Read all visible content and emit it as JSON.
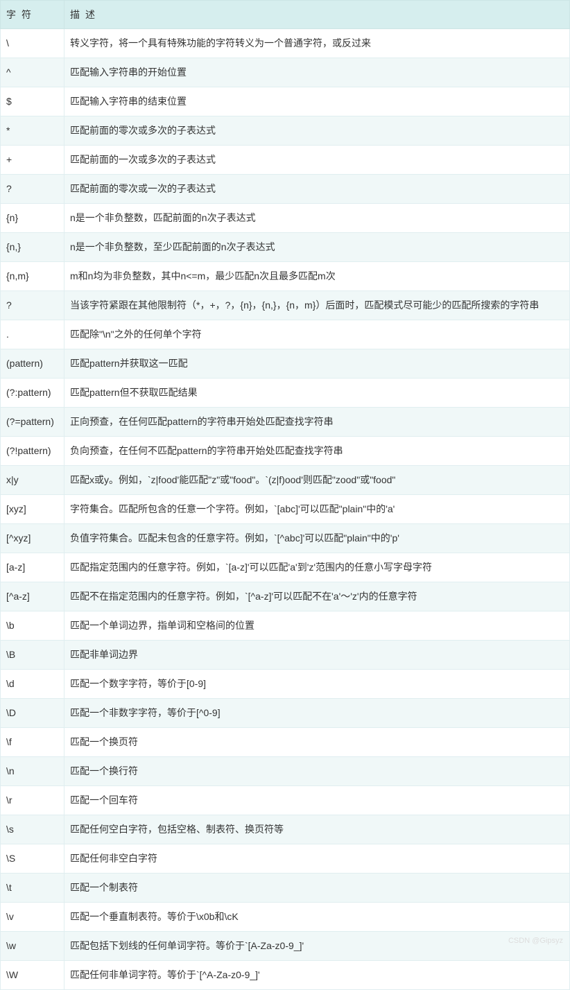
{
  "table": {
    "header_bg": "#d6eeee",
    "row_alt_bg": "#f0f8f8",
    "border_color": "#e0eef0",
    "text_color": "#333333",
    "font_size": 14,
    "columns": [
      {
        "label": "字符",
        "width": 92
      },
      {
        "label": "描述",
        "width": "auto"
      }
    ],
    "rows": [
      {
        "char": "\\",
        "desc": "转义字符，将一个具有特殊功能的字符转义为一个普通字符，或反过来"
      },
      {
        "char": "^",
        "desc": "匹配输入字符串的开始位置"
      },
      {
        "char": "$",
        "desc": "匹配输入字符串的结束位置"
      },
      {
        "char": "*",
        "desc": "匹配前面的零次或多次的子表达式"
      },
      {
        "char": "+",
        "desc": "匹配前面的一次或多次的子表达式"
      },
      {
        "char": "?",
        "desc": "匹配前面的零次或一次的子表达式"
      },
      {
        "char": "{n}",
        "desc": "n是一个非负整数，匹配前面的n次子表达式"
      },
      {
        "char": "{n,}",
        "desc": "n是一个非负整数，至少匹配前面的n次子表达式"
      },
      {
        "char": "{n,m}",
        "desc": "m和n均为非负整数，其中n<=m，最少匹配n次且最多匹配m次"
      },
      {
        "char": "?",
        "desc": "当该字符紧跟在其他限制符（*，+，?，{n}，{n,}，{n，m}）后面时，匹配模式尽可能少的匹配所搜索的字符串"
      },
      {
        "char": ".",
        "desc": "匹配除\"\\n\"之外的任何单个字符"
      },
      {
        "char": "(pattern)",
        "desc": "匹配pattern并获取这一匹配"
      },
      {
        "char": "(?:pattern)",
        "desc": "匹配pattern但不获取匹配结果"
      },
      {
        "char": "(?=pattern)",
        "desc": "正向预查，在任何匹配pattern的字符串开始处匹配查找字符串"
      },
      {
        "char": "(?!pattern)",
        "desc": "负向预查，在任何不匹配pattern的字符串开始处匹配查找字符串"
      },
      {
        "char": "x|y",
        "desc": "匹配x或y。例如，`z|food'能匹配\"z\"或\"food\"。`(z|f)ood'则匹配\"zood\"或\"food\""
      },
      {
        "char": "[xyz]",
        "desc": "字符集合。匹配所包含的任意一个字符。例如，`[abc]'可以匹配\"plain\"中的'a'"
      },
      {
        "char": "[^xyz]",
        "desc": "负值字符集合。匹配未包含的任意字符。例如，`[^abc]'可以匹配\"plain\"中的'p'"
      },
      {
        "char": "[a-z]",
        "desc": "匹配指定范围内的任意字符。例如，`[a-z]'可以匹配'a'到'z'范围内的任意小写字母字符"
      },
      {
        "char": "[^a-z]",
        "desc": "匹配不在指定范围内的任意字符。例如，`[^a-z]'可以匹配不在'a'～'z'内的任意字符"
      },
      {
        "char": "\\b",
        "desc": "匹配一个单词边界，指单词和空格间的位置"
      },
      {
        "char": "\\B",
        "desc": "匹配非单词边界"
      },
      {
        "char": "\\d",
        "desc": "匹配一个数字字符，等价于[0-9]"
      },
      {
        "char": "\\D",
        "desc": "匹配一个非数字字符，等价于[^0-9]"
      },
      {
        "char": "\\f",
        "desc": "匹配一个换页符"
      },
      {
        "char": "\\n",
        "desc": "匹配一个换行符"
      },
      {
        "char": "\\r",
        "desc": "匹配一个回车符"
      },
      {
        "char": "\\s",
        "desc": "匹配任何空白字符，包括空格、制表符、换页符等"
      },
      {
        "char": "\\S",
        "desc": "匹配任何非空白字符"
      },
      {
        "char": "\\t",
        "desc": "匹配一个制表符"
      },
      {
        "char": "\\v",
        "desc": "匹配一个垂直制表符。等价于\\x0b和\\cK"
      },
      {
        "char": "\\w",
        "desc": "匹配包括下划线的任何单词字符。等价于`[A-Za-z0-9_]'"
      },
      {
        "char": "\\W",
        "desc": "匹配任何非单词字符。等价于`[^A-Za-z0-9_]'"
      }
    ]
  },
  "watermark": "CSDN @Gipsyz"
}
